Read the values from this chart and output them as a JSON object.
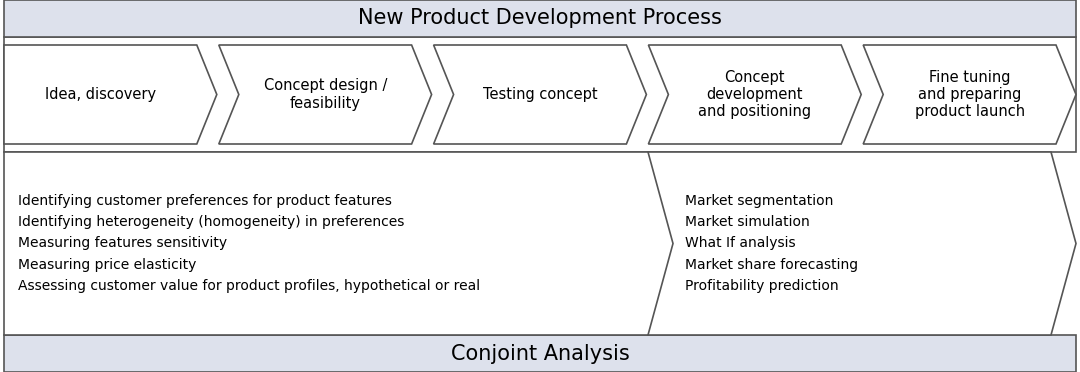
{
  "title_top": "New Product Development Process",
  "title_bottom": "Conjoint Analysis",
  "arrow_labels": [
    "Idea, discovery",
    "Concept design /\nfeasibility",
    "Testing concept",
    "Concept\ndevelopment\nand positioning",
    "Fine tuning\nand preparing\nproduct launch"
  ],
  "left_box_text": "Identifying customer preferences for product features\nIdentifying heterogeneity (homogeneity) in preferences\nMeasuring features sensitivity\nMeasuring price elasticity\nAssessing customer value for product profiles, hypothetical or real",
  "right_box_text": "Market segmentation\nMarket simulation\nWhat If analysis\nMarket share forecasting\nProfitability prediction",
  "header_bg": "#dde1ec",
  "footer_bg": "#dde1ec",
  "arrow_fill_color": "#ffffff",
  "border_color": "#555555",
  "title_fontsize": 15,
  "arrow_fontsize": 10.5,
  "content_fontsize": 10,
  "fig_width": 10.8,
  "fig_height": 3.72,
  "dpi": 100
}
